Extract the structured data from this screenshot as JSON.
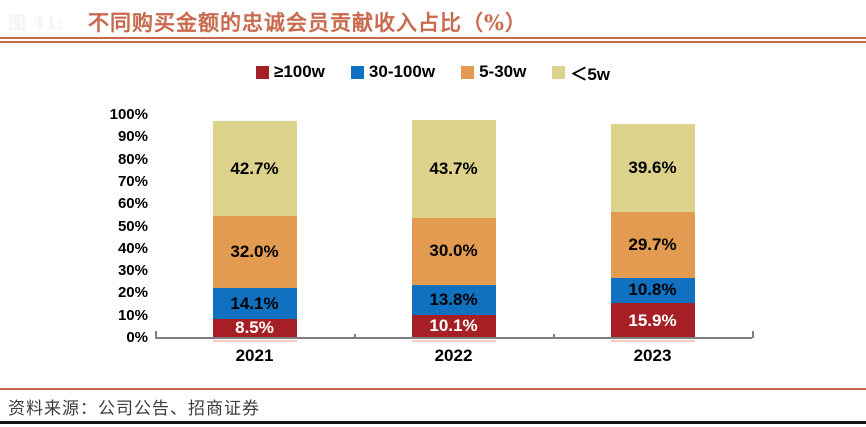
{
  "figure_label": "图 41:",
  "title": "不同购买金额的忠诚会员贡献收入占比（%）",
  "source": "资料来源：公司公告、招商证券",
  "colors": {
    "accent": "#c9694e",
    "series_red": "#a51f24",
    "series_blue": "#1171c1",
    "series_orange": "#e29b51",
    "series_khaki": "#dcd28c",
    "axis": "#7f7f7f"
  },
  "chart_data": {
    "type": "bar",
    "stacked": true,
    "title": "不同购买金额的忠诚会员贡献收入占比（%）",
    "categories": [
      "2021",
      "2022",
      "2023"
    ],
    "series": [
      {
        "name": "≥100w",
        "color": "#a51f24",
        "label_color": "#ffffff",
        "values": [
          8.5,
          10.1,
          15.9
        ]
      },
      {
        "name": "30-100w",
        "color": "#1171c1",
        "label_color": "#000000",
        "values": [
          14.1,
          13.8,
          10.8
        ]
      },
      {
        "name": "5-30w",
        "color": "#e29b51",
        "label_color": "#000000",
        "values": [
          32.0,
          30.0,
          29.7
        ]
      },
      {
        "name": "＜5w",
        "color": "#dcd28c",
        "label_color": "#000000",
        "values": [
          42.7,
          43.7,
          39.6
        ]
      }
    ],
    "y_ticks": [
      "0%",
      "10%",
      "20%",
      "30%",
      "40%",
      "50%",
      "60%",
      "70%",
      "80%",
      "90%",
      "100%"
    ],
    "ylim": [
      0,
      100
    ],
    "grid": false,
    "legend_position": "top",
    "data_labels": true,
    "data_label_format": "one_decimal_percent"
  }
}
